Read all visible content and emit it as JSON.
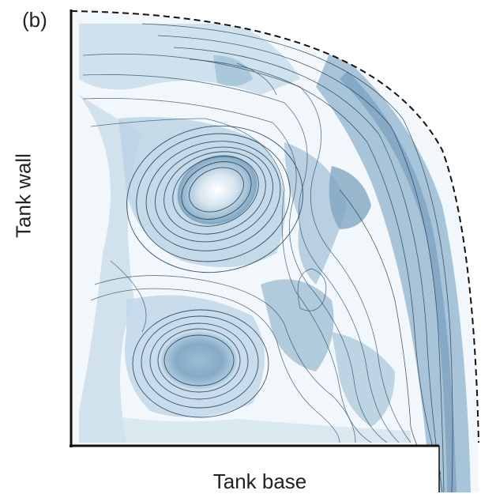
{
  "figure": {
    "panel_label": "(b)",
    "y_axis_label": "Tank wall",
    "x_axis_label": "Tank base"
  },
  "colors": {
    "background_fill": "#f2f7fb",
    "light_blue": "#b9d2e3",
    "mid_blue": "#8fb3cc",
    "deep_blue": "#5f8eaf",
    "streamline": "#1e3a52",
    "wall": "#111111"
  }
}
